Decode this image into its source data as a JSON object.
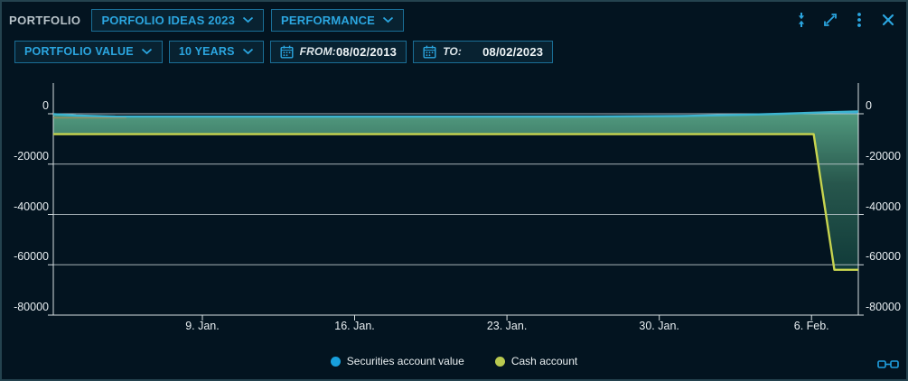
{
  "header": {
    "title": "PORTFOLIO",
    "portfolio_select": "PORFOLIO IDEAS 2023",
    "view_select": "PERFORMANCE",
    "icons": [
      "collapse-vertical-icon",
      "expand-icon",
      "kebab-menu-icon",
      "close-icon"
    ]
  },
  "toolbar": {
    "metric_select": "PORTFOLIO VALUE",
    "range_select": "10 YEARS",
    "from_label": "FROM:",
    "from_value": "08/02/2013",
    "to_label": "TO:",
    "to_value": "08/02/2023"
  },
  "colors": {
    "accent": "#2ba6e0",
    "background": "#031420",
    "gridline": "#c3cdd1",
    "axis": "#d6dee1",
    "securities_line": "#3db4d0",
    "securities_fill": "#1b9ed8",
    "cash_line": "#c7d44f",
    "area_top": "#55a083",
    "area_bottom": "#123f3c"
  },
  "chart_data": {
    "type": "area",
    "title": "",
    "xlabel": "",
    "ylabel": "",
    "grid": true,
    "legend_position": "bottom",
    "x_range": [
      2.15,
      39.15
    ],
    "y_range": [
      -80000,
      12200
    ],
    "x_ticks": [
      {
        "x": 9,
        "label": "9. Jan."
      },
      {
        "x": 16,
        "label": "16. Jan."
      },
      {
        "x": 23,
        "label": "23. Jan."
      },
      {
        "x": 30,
        "label": "30. Jan."
      },
      {
        "x": 37,
        "label": "6. Feb."
      }
    ],
    "y_ticks": [
      {
        "v": 0,
        "label": "0"
      },
      {
        "v": -20000,
        "label": "-20000"
      },
      {
        "v": -40000,
        "label": "-40000"
      },
      {
        "v": -60000,
        "label": "-60000"
      },
      {
        "v": -80000,
        "label": "-80000"
      }
    ],
    "series": [
      {
        "name": "Securities account value",
        "color": "#3db4d0",
        "legend_color": "#18a0dd",
        "points": [
          [
            2.15,
            -150
          ],
          [
            3.2,
            -700
          ],
          [
            5,
            -1100
          ],
          [
            12,
            -1150
          ],
          [
            20,
            -1150
          ],
          [
            27,
            -1100
          ],
          [
            31,
            -900
          ],
          [
            34,
            -400
          ],
          [
            35.7,
            0
          ],
          [
            36.5,
            250
          ],
          [
            38,
            650
          ],
          [
            39.15,
            900
          ]
        ]
      },
      {
        "name": "Cash account",
        "color": "#c7d44f",
        "legend_color": "#b9c94f",
        "points": [
          [
            2.15,
            -8100
          ],
          [
            37.1,
            -8100
          ],
          [
            38.05,
            -62000
          ],
          [
            39.15,
            -62000
          ]
        ]
      }
    ]
  }
}
